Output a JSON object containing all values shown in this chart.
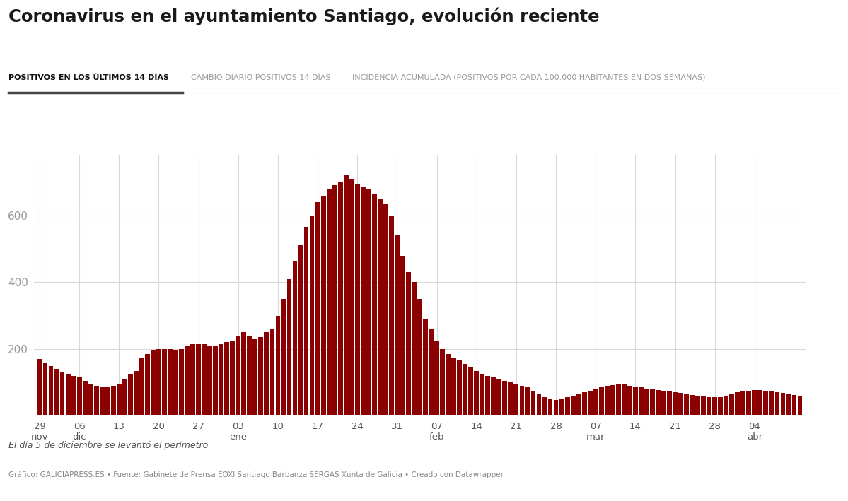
{
  "title": "Coronavirus en el ayuntamiento Santiago, evolución reciente",
  "tab1": "POSITIVOS EN LOS ÚLTIMOS 14 DÍAS",
  "tab2": "CAMBIO DIARIO POSITIVOS 14 DÍAS",
  "tab3": "INCIDENCIA ACUMULADA (POSITIVOS POR CADA 100.000 HABITANTES EN DOS SEMANAS)",
  "note": "El día 5 de diciembre se levantó el perímetro",
  "source": "Gráfico: GALICIAPRESS.ES • Fuente: Gabinete de Prensa EOXI Santiago Barbanza SERGAS Xunta de Galicia • Creado con Datawrapper",
  "bar_color": "#8B0000",
  "background_color": "#ffffff",
  "ytick_labels": [
    "200",
    "400",
    "600"
  ],
  "ytick_values": [
    200,
    400,
    600
  ],
  "ylim": [
    0,
    780
  ],
  "values": [
    170,
    160,
    150,
    140,
    130,
    125,
    120,
    115,
    105,
    95,
    90,
    85,
    85,
    90,
    95,
    110,
    125,
    135,
    175,
    185,
    195,
    200,
    200,
    200,
    195,
    200,
    210,
    215,
    215,
    215,
    210,
    210,
    215,
    220,
    225,
    240,
    250,
    240,
    230,
    235,
    250,
    260,
    300,
    350,
    410,
    465,
    510,
    565,
    600,
    640,
    660,
    680,
    690,
    700,
    720,
    710,
    695,
    685,
    680,
    665,
    650,
    635,
    600,
    540,
    480,
    430,
    400,
    350,
    290,
    260,
    225,
    200,
    185,
    175,
    165,
    155,
    145,
    135,
    125,
    120,
    115,
    110,
    105,
    100,
    95,
    90,
    85,
    75,
    65,
    55,
    50,
    48,
    50,
    55,
    60,
    65,
    70,
    75,
    80,
    85,
    90,
    92,
    95,
    95,
    90,
    88,
    85,
    82,
    80,
    78,
    75,
    72,
    70,
    68,
    65,
    62,
    60,
    58,
    55,
    55,
    57,
    60,
    65,
    70,
    72,
    75,
    77,
    78,
    75,
    72,
    70,
    68,
    65,
    63,
    60
  ],
  "xtick_positions_labels": [
    [
      0,
      "29\nnov"
    ],
    [
      7,
      "06\ndic"
    ],
    [
      14,
      "13"
    ],
    [
      21,
      "20"
    ],
    [
      28,
      "27"
    ],
    [
      35,
      "03\nene"
    ],
    [
      42,
      "10"
    ],
    [
      49,
      "17"
    ],
    [
      56,
      "24"
    ],
    [
      63,
      "31"
    ],
    [
      70,
      "07\nfeb"
    ],
    [
      77,
      "14"
    ],
    [
      84,
      "21"
    ],
    [
      91,
      "28"
    ],
    [
      98,
      "07\nmar"
    ],
    [
      105,
      "14"
    ],
    [
      112,
      "21"
    ],
    [
      119,
      "28"
    ],
    [
      126,
      "04\nabr"
    ]
  ]
}
